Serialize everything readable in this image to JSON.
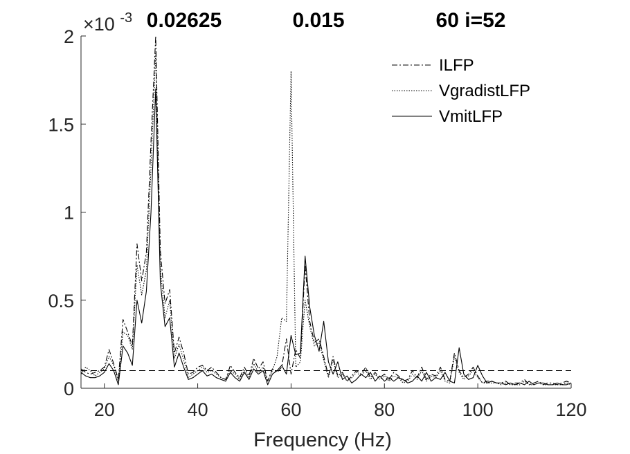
{
  "chart_data": {
    "type": "line",
    "title_parts": [
      "0.02625",
      "0.015",
      "60 i=52"
    ],
    "xlabel": "Frequency (Hz)",
    "ylabel": "",
    "y_exponent_base": "×10",
    "y_exponent_power": "-3",
    "xlim": [
      15,
      120
    ],
    "ylim": [
      0,
      0.002
    ],
    "xticks": [
      20,
      40,
      60,
      80,
      100,
      120
    ],
    "xtick_labels": [
      "20",
      "40",
      "60",
      "80",
      "100",
      "120"
    ],
    "yticks": [
      0,
      0.0005,
      0.001,
      0.0015,
      0.002
    ],
    "ytick_labels": [
      "0",
      "0.5",
      "1",
      "1.5",
      "2"
    ],
    "grid": false,
    "legend_position": "top-right",
    "threshold_line": {
      "y": 0.0001,
      "style": "dashed"
    },
    "series": [
      {
        "name": "ILFP",
        "style": "dashdot",
        "color": "#000000",
        "x": [
          15,
          16,
          17,
          18,
          19,
          20,
          21,
          22,
          23,
          24,
          25,
          26,
          27,
          28,
          29,
          30,
          31,
          32,
          33,
          34,
          35,
          36,
          37,
          38,
          39,
          40,
          41,
          42,
          43,
          44,
          45,
          46,
          47,
          48,
          49,
          50,
          51,
          52,
          53,
          54,
          55,
          56,
          57,
          58,
          59,
          60,
          61,
          62,
          63,
          64,
          65,
          66,
          67,
          68,
          69,
          70,
          71,
          72,
          73,
          74,
          75,
          76,
          77,
          78,
          79,
          80,
          81,
          82,
          83,
          84,
          85,
          86,
          87,
          88,
          89,
          90,
          91,
          92,
          93,
          94,
          95,
          96,
          97,
          98,
          99,
          100,
          101,
          102,
          103,
          104,
          105,
          106,
          107,
          108,
          109,
          110,
          111,
          112,
          113,
          114,
          115,
          116,
          117,
          118,
          119,
          120
        ],
        "y": [
          0.00011,
          9e-05,
          8e-05,
          9e-05,
          0.0001,
          0.00012,
          0.00022,
          0.00014,
          5e-05,
          0.00039,
          0.00032,
          0.00024,
          0.00082,
          0.00061,
          0.00077,
          0.0014,
          0.0022,
          0.00078,
          0.00048,
          0.00056,
          0.0002,
          0.00029,
          0.0002,
          8e-05,
          9e-05,
          0.00012,
          0.00013,
          0.0001,
          0.00012,
          9e-05,
          6e-05,
          5e-05,
          0.00013,
          9e-05,
          6e-05,
          0.00012,
          7e-05,
          0.00017,
          0.00011,
          0.00015,
          4e-05,
          0.00011,
          9e-05,
          0.00012,
          0.00028,
          8e-05,
          0.00022,
          0.00017,
          0.0007,
          0.00038,
          0.00026,
          0.00028,
          0.00018,
          7e-05,
          0.00018,
          7e-05,
          9e-05,
          4e-05,
          7e-05,
          0.0001,
          8e-05,
          0.00012,
          6e-05,
          9e-05,
          6e-05,
          8e-05,
          5e-05,
          9e-05,
          7e-05,
          4e-05,
          5e-05,
          0.0001,
          6e-05,
          0.00012,
          5e-05,
          8e-05,
          7e-05,
          0.00012,
          5e-05,
          4e-05,
          0.0002,
          0.0001,
          6e-05,
          8e-05,
          0.00012,
          7e-05,
          3e-05,
          4e-05,
          4e-05,
          3e-05,
          3e-05,
          4e-05,
          2e-05,
          3e-05,
          3e-05,
          5e-05,
          2e-05,
          3e-05,
          4e-05,
          2e-05,
          3e-05,
          3e-05,
          2e-05,
          3e-05,
          4e-05,
          3e-05
        ]
      },
      {
        "name": "VgradistLFP",
        "style": "dotted",
        "color": "#000000",
        "x": [
          15,
          16,
          17,
          18,
          19,
          20,
          21,
          22,
          23,
          24,
          25,
          26,
          27,
          28,
          29,
          30,
          31,
          32,
          33,
          34,
          35,
          36,
          37,
          38,
          39,
          40,
          41,
          42,
          43,
          44,
          45,
          46,
          47,
          48,
          49,
          50,
          51,
          52,
          53,
          54,
          55,
          56,
          57,
          58,
          59,
          60,
          61,
          62,
          63,
          64,
          65,
          66,
          67,
          68,
          69,
          70,
          71,
          72,
          73,
          74,
          75,
          76,
          77,
          78,
          79,
          80,
          81,
          82,
          83,
          84,
          85,
          86,
          87,
          88,
          89,
          90,
          91,
          92,
          93,
          94,
          95,
          96,
          97,
          98,
          99,
          100,
          101,
          102,
          103,
          104,
          105,
          106,
          107,
          108,
          109,
          110,
          111,
          112,
          113,
          114,
          115,
          116,
          117,
          118,
          119,
          120
        ],
        "y": [
          8e-05,
          0.00012,
          0.0001,
          7e-05,
          9e-05,
          0.00011,
          0.00018,
          0.00013,
          4e-05,
          0.00032,
          0.0003,
          0.00022,
          0.0007,
          0.00053,
          0.00067,
          0.00125,
          0.0019,
          0.00068,
          0.0004,
          0.0005,
          0.00017,
          0.00025,
          0.00016,
          6e-05,
          8e-05,
          0.0001,
          0.00012,
          9e-05,
          0.0001,
          8e-05,
          6e-05,
          5e-05,
          0.0001,
          8e-05,
          5e-05,
          0.0001,
          6e-05,
          0.00014,
          9e-05,
          0.00012,
          4e-05,
          0.0001,
          0.00018,
          0.0004,
          0.00038,
          0.0018,
          0.00012,
          0.00015,
          0.0005,
          0.00035,
          0.00024,
          0.00026,
          0.00016,
          6e-05,
          0.00016,
          6e-05,
          8e-05,
          4e-05,
          6e-05,
          9e-05,
          7e-05,
          0.0001,
          5e-05,
          8e-05,
          5e-05,
          7e-05,
          4e-05,
          7e-05,
          6e-05,
          3e-05,
          4e-05,
          8e-05,
          5e-05,
          0.0001,
          4e-05,
          7e-05,
          6e-05,
          0.0001,
          4e-05,
          3e-05,
          0.00018,
          9e-05,
          5e-05,
          7e-05,
          0.0001,
          6e-05,
          3e-05,
          3e-05,
          3e-05,
          3e-05,
          2e-05,
          3e-05,
          2e-05,
          2e-05,
          2e-05,
          4e-05,
          2e-05,
          2e-05,
          3e-05,
          2e-05,
          2e-05,
          2e-05,
          2e-05,
          2e-05,
          3e-05,
          2e-05
        ]
      },
      {
        "name": "VmitLFP",
        "style": "solid",
        "color": "#000000",
        "x": [
          15,
          16,
          17,
          18,
          19,
          20,
          21,
          22,
          23,
          24,
          25,
          26,
          27,
          28,
          29,
          30,
          31,
          32,
          33,
          34,
          35,
          36,
          37,
          38,
          39,
          40,
          41,
          42,
          43,
          44,
          45,
          46,
          47,
          48,
          49,
          50,
          51,
          52,
          53,
          54,
          55,
          56,
          57,
          58,
          59,
          60,
          61,
          62,
          63,
          64,
          65,
          66,
          67,
          68,
          69,
          70,
          71,
          72,
          73,
          74,
          75,
          76,
          77,
          78,
          79,
          80,
          81,
          82,
          83,
          84,
          85,
          86,
          87,
          88,
          89,
          90,
          91,
          92,
          93,
          94,
          95,
          96,
          97,
          98,
          99,
          100,
          101,
          102,
          103,
          104,
          105,
          106,
          107,
          108,
          109,
          110,
          111,
          112,
          113,
          114,
          115,
          116,
          117,
          118,
          119,
          120
        ],
        "y": [
          9e-05,
          7e-05,
          6e-05,
          6e-05,
          7e-05,
          9e-05,
          0.00014,
          0.0001,
          2e-05,
          0.00024,
          0.0002,
          0.00013,
          0.0005,
          0.00037,
          0.00055,
          0.001,
          0.0017,
          0.0006,
          0.00035,
          0.0004,
          0.00012,
          0.0002,
          0.00012,
          5e-05,
          6e-05,
          8e-05,
          0.0001,
          7e-05,
          8e-05,
          6e-05,
          5e-05,
          4e-05,
          9e-05,
          6e-05,
          4e-05,
          9e-05,
          5e-05,
          0.00011,
          8e-05,
          0.0001,
          2e-05,
          8e-05,
          0.0001,
          0.00013,
          8e-05,
          0.0003,
          0.00019,
          0.0002,
          0.00075,
          0.00046,
          0.0003,
          0.00021,
          0.00038,
          0.00015,
          8e-05,
          0.00015,
          5e-05,
          7e-05,
          3e-05,
          5e-05,
          8e-05,
          6e-05,
          9e-05,
          4e-05,
          7e-05,
          4e-05,
          6e-05,
          4e-05,
          6e-05,
          5e-05,
          3e-05,
          4e-05,
          7e-05,
          4e-05,
          9e-05,
          4e-05,
          6e-05,
          5e-05,
          9e-05,
          4e-05,
          3e-05,
          0.00023,
          8e-05,
          5e-05,
          6e-05,
          0.00013,
          7e-05,
          3e-05,
          4e-05,
          3e-05,
          3e-05,
          2e-05,
          3e-05,
          2e-05,
          3e-05,
          2e-05,
          4e-05,
          2e-05,
          3e-05,
          3e-05,
          2e-05,
          2e-05,
          3e-05,
          2e-05,
          2e-05,
          3e-05
        ]
      }
    ]
  }
}
